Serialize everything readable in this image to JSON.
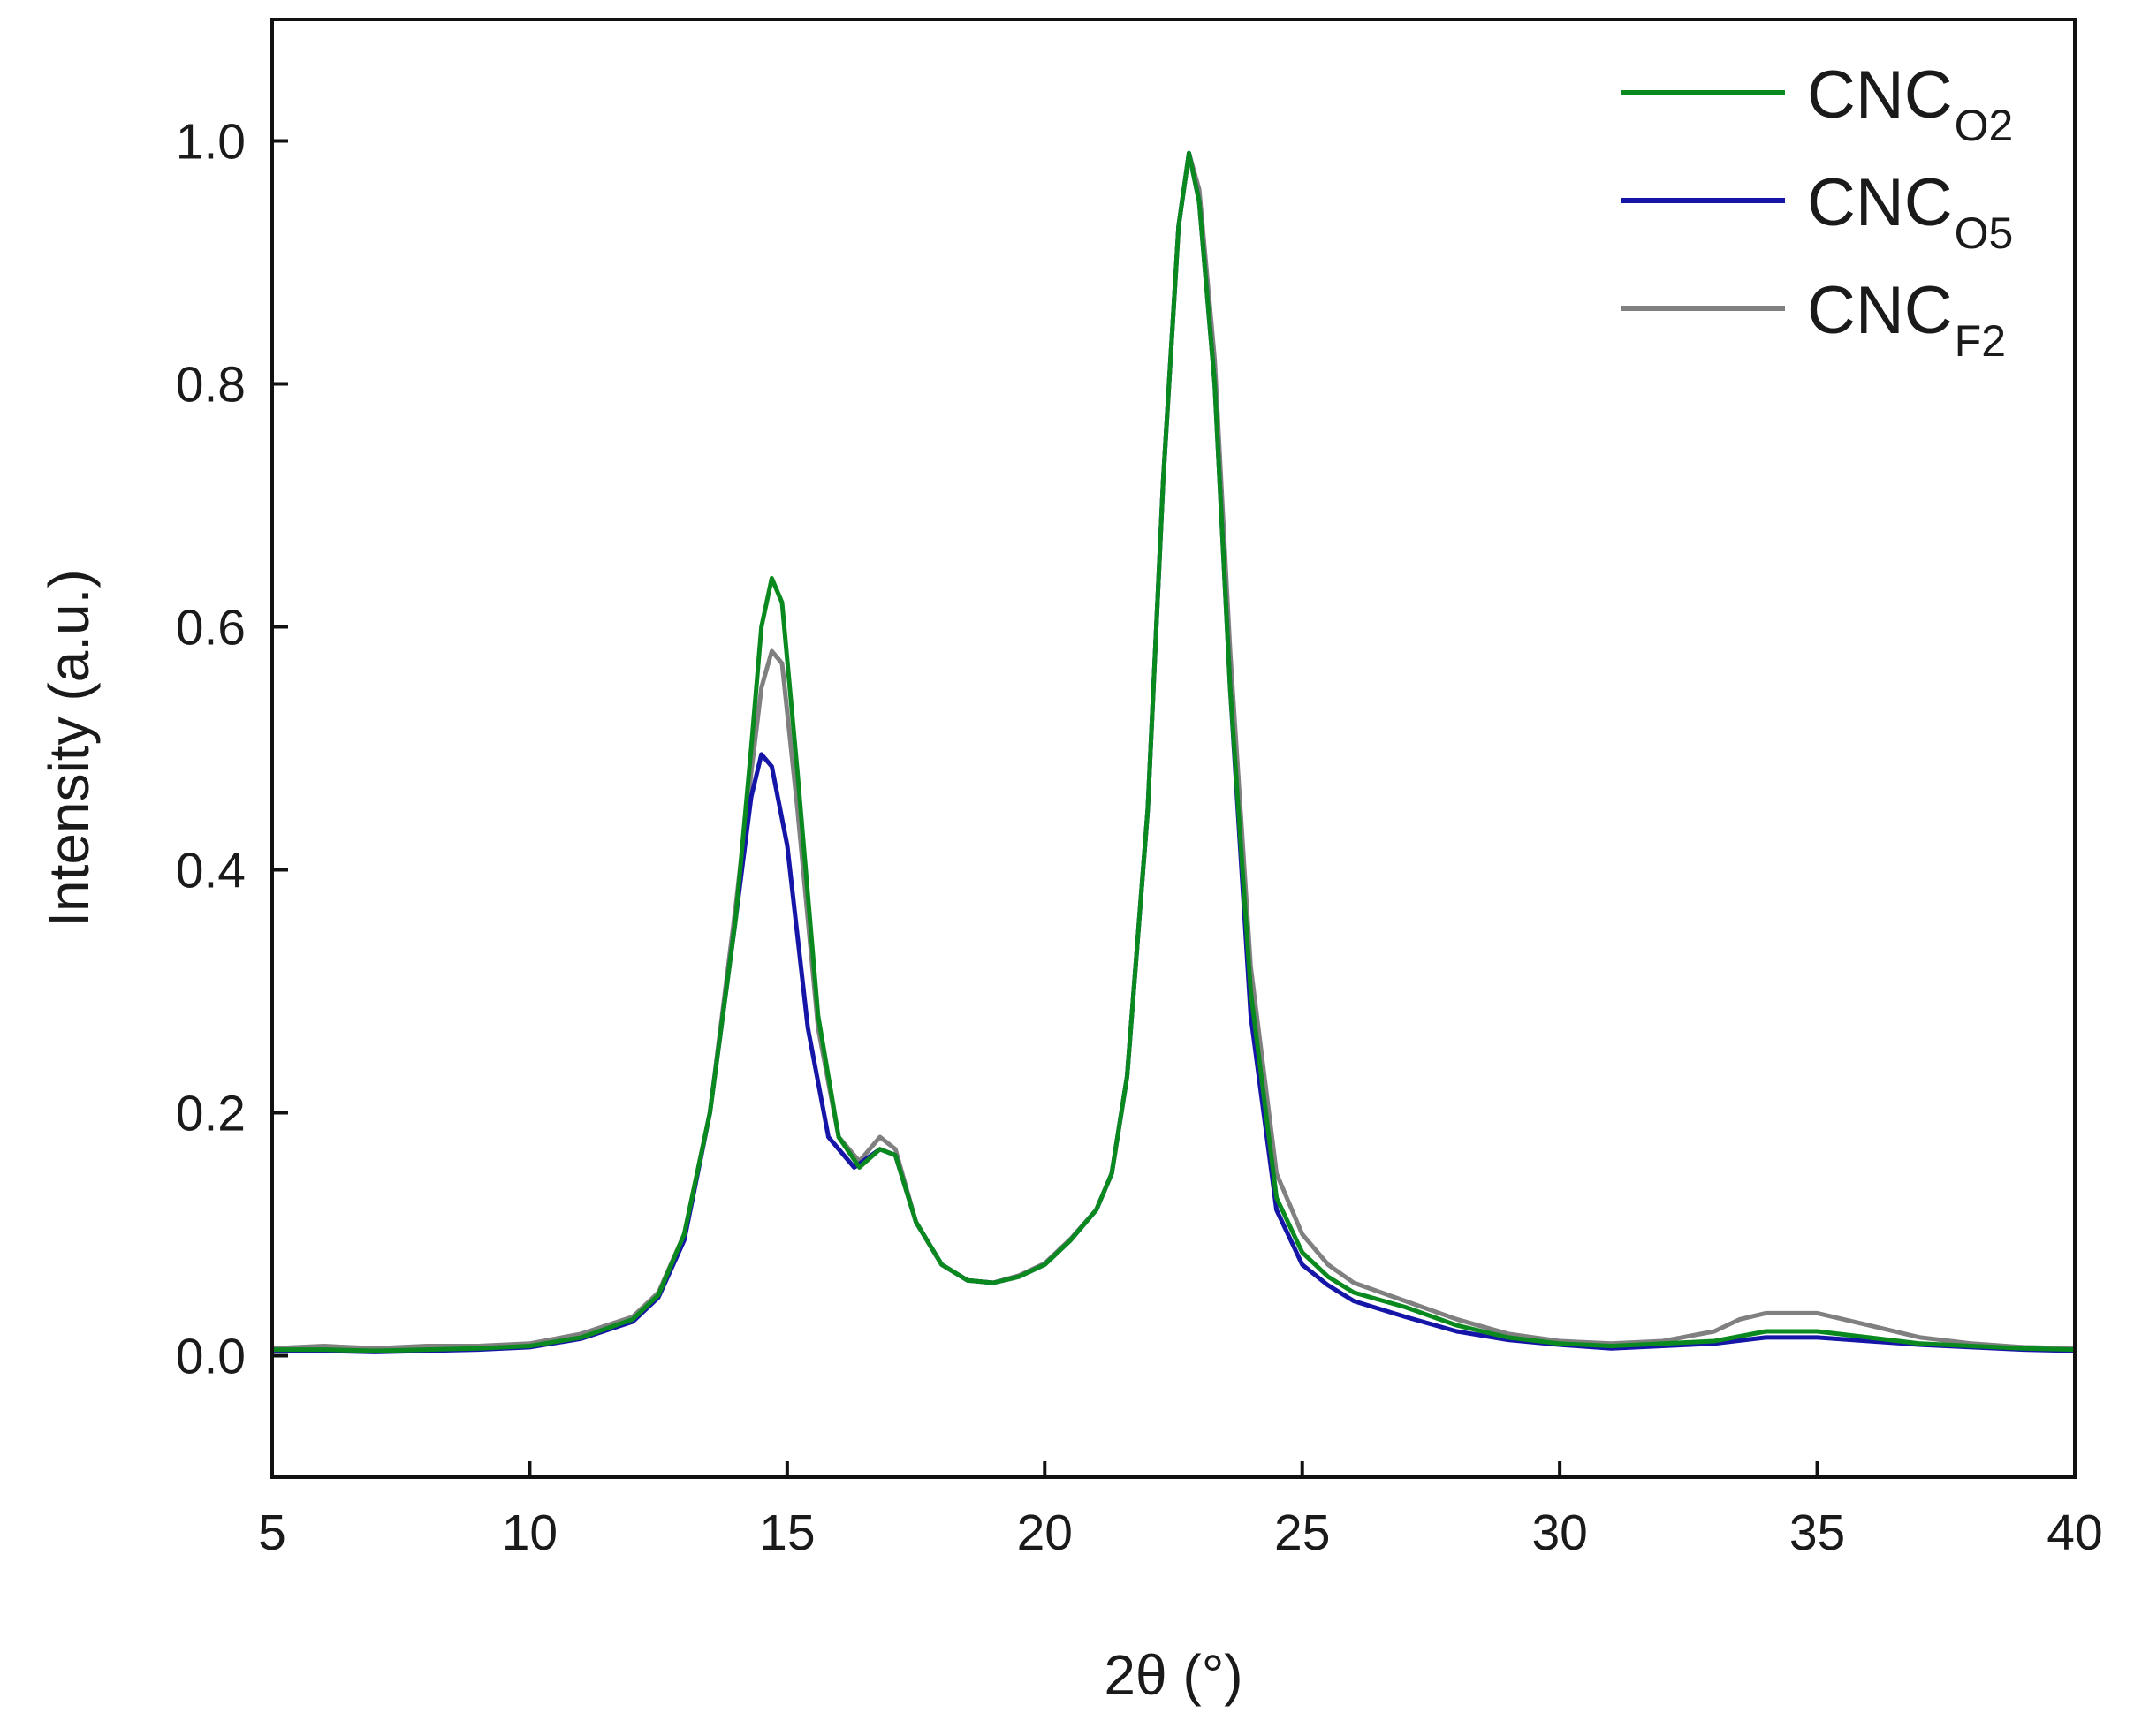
{
  "chart_data": {
    "type": "line",
    "title": "",
    "xlabel": "2θ (°)",
    "ylabel": "Intensity (a.u.)",
    "xlim": [
      5,
      40
    ],
    "ylim": [
      -0.1,
      1.1
    ],
    "xticks": [
      {
        "value": 5,
        "label": "5"
      },
      {
        "value": 10,
        "label": "10"
      },
      {
        "value": 15,
        "label": "15"
      },
      {
        "value": 20,
        "label": "20"
      },
      {
        "value": 25,
        "label": "25"
      },
      {
        "value": 30,
        "label": "30"
      },
      {
        "value": 35,
        "label": "35"
      },
      {
        "value": 40,
        "label": "40"
      }
    ],
    "yticks": [
      {
        "value": 0.0,
        "label": "0.0"
      },
      {
        "value": 0.2,
        "label": "0.2"
      },
      {
        "value": 0.4,
        "label": "0.4"
      },
      {
        "value": 0.6,
        "label": "0.6"
      },
      {
        "value": 0.8,
        "label": "0.8"
      },
      {
        "value": 1.0,
        "label": "1.0"
      }
    ],
    "grid": false,
    "legend_position": "top-right",
    "series": [
      {
        "name": "CNC",
        "subscript": "O2",
        "color": "#0a8a1e",
        "points": [
          [
            5,
            0.005
          ],
          [
            6,
            0.005
          ],
          [
            7,
            0.004
          ],
          [
            8,
            0.005
          ],
          [
            9,
            0.006
          ],
          [
            10,
            0.008
          ],
          [
            11,
            0.015
          ],
          [
            12,
            0.03
          ],
          [
            12.5,
            0.05
          ],
          [
            13,
            0.1
          ],
          [
            13.5,
            0.2
          ],
          [
            14,
            0.36
          ],
          [
            14.3,
            0.5
          ],
          [
            14.5,
            0.6
          ],
          [
            14.7,
            0.64
          ],
          [
            14.9,
            0.62
          ],
          [
            15.2,
            0.48
          ],
          [
            15.6,
            0.28
          ],
          [
            16,
            0.18
          ],
          [
            16.4,
            0.155
          ],
          [
            16.8,
            0.17
          ],
          [
            17.1,
            0.165
          ],
          [
            17.5,
            0.11
          ],
          [
            18,
            0.075
          ],
          [
            18.5,
            0.062
          ],
          [
            19,
            0.06
          ],
          [
            19.5,
            0.065
          ],
          [
            20,
            0.075
          ],
          [
            20.5,
            0.095
          ],
          [
            21,
            0.12
          ],
          [
            21.3,
            0.15
          ],
          [
            21.6,
            0.23
          ],
          [
            22,
            0.45
          ],
          [
            22.3,
            0.72
          ],
          [
            22.6,
            0.93
          ],
          [
            22.8,
            0.99
          ],
          [
            23,
            0.95
          ],
          [
            23.3,
            0.8
          ],
          [
            23.6,
            0.55
          ],
          [
            24,
            0.3
          ],
          [
            24.5,
            0.13
          ],
          [
            25,
            0.085
          ],
          [
            25.5,
            0.065
          ],
          [
            26,
            0.052
          ],
          [
            27,
            0.04
          ],
          [
            28,
            0.025
          ],
          [
            29,
            0.015
          ],
          [
            30,
            0.01
          ],
          [
            31,
            0.008
          ],
          [
            32,
            0.01
          ],
          [
            33,
            0.012
          ],
          [
            34,
            0.02
          ],
          [
            35,
            0.02
          ],
          [
            36,
            0.015
          ],
          [
            37,
            0.01
          ],
          [
            38,
            0.008
          ],
          [
            39,
            0.006
          ],
          [
            40,
            0.005
          ]
        ]
      },
      {
        "name": "CNC",
        "subscript": "O5",
        "color": "#1515a8",
        "points": [
          [
            5,
            0.004
          ],
          [
            6,
            0.004
          ],
          [
            7,
            0.003
          ],
          [
            8,
            0.004
          ],
          [
            9,
            0.005
          ],
          [
            10,
            0.007
          ],
          [
            11,
            0.014
          ],
          [
            12,
            0.028
          ],
          [
            12.5,
            0.048
          ],
          [
            13,
            0.095
          ],
          [
            13.5,
            0.2
          ],
          [
            14,
            0.36
          ],
          [
            14.3,
            0.46
          ],
          [
            14.5,
            0.495
          ],
          [
            14.7,
            0.485
          ],
          [
            15,
            0.42
          ],
          [
            15.4,
            0.27
          ],
          [
            15.8,
            0.18
          ],
          [
            16.3,
            0.155
          ],
          [
            16.8,
            0.17
          ],
          [
            17.1,
            0.165
          ],
          [
            17.5,
            0.11
          ],
          [
            18,
            0.075
          ],
          [
            18.5,
            0.062
          ],
          [
            19,
            0.06
          ],
          [
            19.5,
            0.065
          ],
          [
            20,
            0.075
          ],
          [
            20.5,
            0.095
          ],
          [
            21,
            0.12
          ],
          [
            21.3,
            0.15
          ],
          [
            21.6,
            0.23
          ],
          [
            22,
            0.45
          ],
          [
            22.3,
            0.72
          ],
          [
            22.6,
            0.93
          ],
          [
            22.8,
            0.99
          ],
          [
            23,
            0.95
          ],
          [
            23.3,
            0.8
          ],
          [
            23.6,
            0.55
          ],
          [
            24,
            0.28
          ],
          [
            24.5,
            0.12
          ],
          [
            25,
            0.075
          ],
          [
            25.5,
            0.058
          ],
          [
            26,
            0.045
          ],
          [
            27,
            0.032
          ],
          [
            28,
            0.02
          ],
          [
            29,
            0.013
          ],
          [
            30,
            0.009
          ],
          [
            31,
            0.006
          ],
          [
            32,
            0.008
          ],
          [
            33,
            0.01
          ],
          [
            34,
            0.015
          ],
          [
            35,
            0.015
          ],
          [
            36,
            0.012
          ],
          [
            37,
            0.009
          ],
          [
            38,
            0.007
          ],
          [
            39,
            0.005
          ],
          [
            40,
            0.004
          ]
        ]
      },
      {
        "name": "CNC",
        "subscript": "F2",
        "color": "#808080",
        "points": [
          [
            5,
            0.006
          ],
          [
            6,
            0.008
          ],
          [
            7,
            0.006
          ],
          [
            8,
            0.008
          ],
          [
            9,
            0.008
          ],
          [
            10,
            0.01
          ],
          [
            11,
            0.018
          ],
          [
            12,
            0.032
          ],
          [
            12.5,
            0.052
          ],
          [
            13,
            0.1
          ],
          [
            13.5,
            0.2
          ],
          [
            14,
            0.37
          ],
          [
            14.3,
            0.48
          ],
          [
            14.5,
            0.55
          ],
          [
            14.7,
            0.58
          ],
          [
            14.9,
            0.57
          ],
          [
            15.2,
            0.45
          ],
          [
            15.6,
            0.27
          ],
          [
            16,
            0.18
          ],
          [
            16.4,
            0.16
          ],
          [
            16.8,
            0.18
          ],
          [
            17.1,
            0.17
          ],
          [
            17.5,
            0.11
          ],
          [
            18,
            0.075
          ],
          [
            18.5,
            0.062
          ],
          [
            19,
            0.06
          ],
          [
            19.5,
            0.066
          ],
          [
            20,
            0.076
          ],
          [
            20.5,
            0.096
          ],
          [
            21,
            0.12
          ],
          [
            21.3,
            0.15
          ],
          [
            21.6,
            0.23
          ],
          [
            22,
            0.45
          ],
          [
            22.3,
            0.72
          ],
          [
            22.6,
            0.93
          ],
          [
            22.8,
            0.99
          ],
          [
            23,
            0.96
          ],
          [
            23.3,
            0.82
          ],
          [
            23.6,
            0.58
          ],
          [
            24,
            0.32
          ],
          [
            24.5,
            0.15
          ],
          [
            25,
            0.1
          ],
          [
            25.5,
            0.075
          ],
          [
            26,
            0.06
          ],
          [
            27,
            0.045
          ],
          [
            28,
            0.03
          ],
          [
            29,
            0.018
          ],
          [
            30,
            0.012
          ],
          [
            31,
            0.01
          ],
          [
            32,
            0.012
          ],
          [
            33,
            0.02
          ],
          [
            33.5,
            0.03
          ],
          [
            34,
            0.035
          ],
          [
            35,
            0.035
          ],
          [
            36,
            0.025
          ],
          [
            37,
            0.015
          ],
          [
            38,
            0.01
          ],
          [
            39,
            0.007
          ],
          [
            40,
            0.006
          ]
        ]
      }
    ]
  }
}
